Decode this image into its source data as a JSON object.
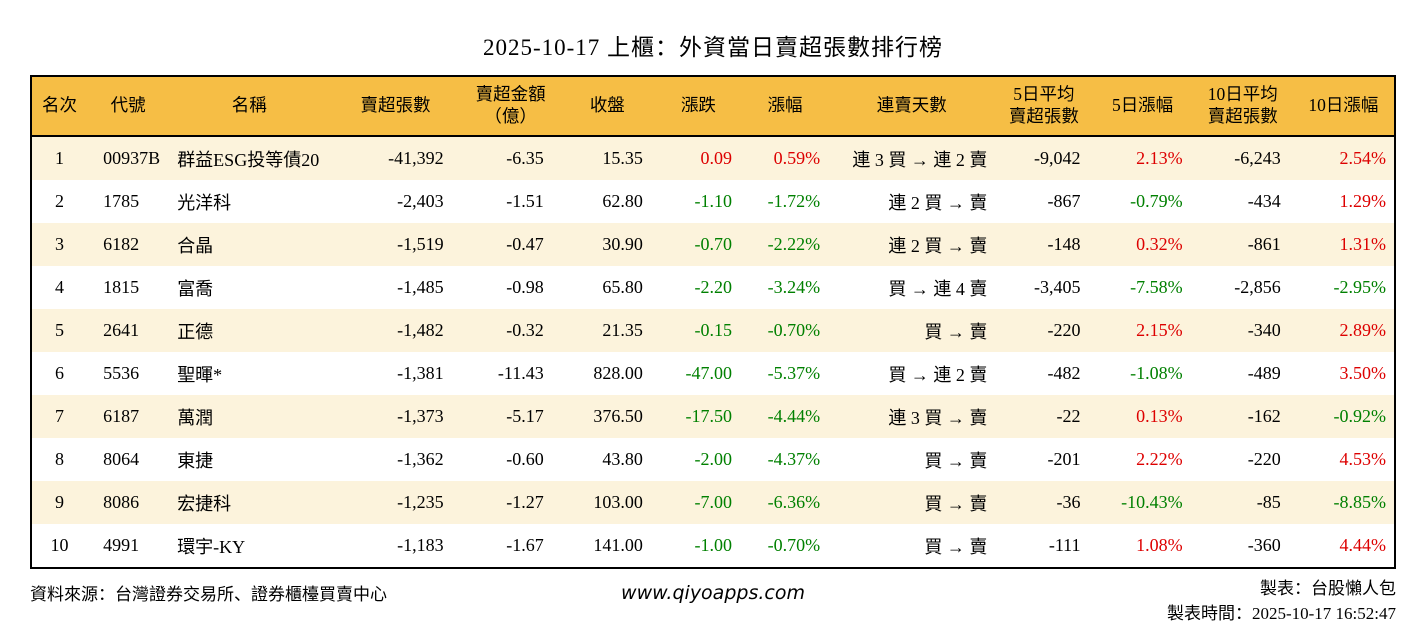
{
  "title": "2025-10-17 上櫃：外資當日賣超張數排行榜",
  "colors": {
    "up_red": "#dd0000",
    "down_green": "#008000",
    "header_bg": "#f6be45",
    "row_alt_bg": "#fcf3dc",
    "border": "#000000"
  },
  "table": {
    "headers": [
      "名次",
      "代號",
      "名稱",
      "賣超張數",
      "賣超金額\n（億）",
      "收盤",
      "漲跌",
      "漲幅",
      "連賣天數",
      "5日平均\n賣超張數",
      "5日漲幅",
      "10日平均\n賣超張數",
      "10日漲幅"
    ],
    "rows": [
      {
        "rank": "1",
        "code": "00937B",
        "name": "群益ESG投等債20",
        "sell_volume": "-41,392",
        "sell_amount": "-6.35",
        "close": "15.35",
        "change": "0.09",
        "change_color": "red",
        "change_pct": "0.59%",
        "change_pct_color": "red",
        "streak": "連 3 買 → 連 2 賣",
        "avg5": "-9,042",
        "avg5_color": "black",
        "pct5": "2.13%",
        "pct5_color": "red",
        "avg10": "-6,243",
        "avg10_color": "black",
        "pct10": "2.54%",
        "pct10_color": "red"
      },
      {
        "rank": "2",
        "code": "1785",
        "name": "光洋科",
        "sell_volume": "-2,403",
        "sell_amount": "-1.51",
        "close": "62.80",
        "change": "-1.10",
        "change_color": "green",
        "change_pct": "-1.72%",
        "change_pct_color": "green",
        "streak": "連 2 買 → 賣",
        "avg5": "-867",
        "avg5_color": "black",
        "pct5": "-0.79%",
        "pct5_color": "green",
        "avg10": "-434",
        "avg10_color": "black",
        "pct10": "1.29%",
        "pct10_color": "red"
      },
      {
        "rank": "3",
        "code": "6182",
        "name": "合晶",
        "sell_volume": "-1,519",
        "sell_amount": "-0.47",
        "close": "30.90",
        "change": "-0.70",
        "change_color": "green",
        "change_pct": "-2.22%",
        "change_pct_color": "green",
        "streak": "連 2 買 → 賣",
        "avg5": "-148",
        "avg5_color": "black",
        "pct5": "0.32%",
        "pct5_color": "red",
        "avg10": "-861",
        "avg10_color": "black",
        "pct10": "1.31%",
        "pct10_color": "red"
      },
      {
        "rank": "4",
        "code": "1815",
        "name": "富喬",
        "sell_volume": "-1,485",
        "sell_amount": "-0.98",
        "close": "65.80",
        "change": "-2.20",
        "change_color": "green",
        "change_pct": "-3.24%",
        "change_pct_color": "green",
        "streak": "買 → 連 4 賣",
        "avg5": "-3,405",
        "avg5_color": "black",
        "pct5": "-7.58%",
        "pct5_color": "green",
        "avg10": "-2,856",
        "avg10_color": "black",
        "pct10": "-2.95%",
        "pct10_color": "green"
      },
      {
        "rank": "5",
        "code": "2641",
        "name": "正德",
        "sell_volume": "-1,482",
        "sell_amount": "-0.32",
        "close": "21.35",
        "change": "-0.15",
        "change_color": "green",
        "change_pct": "-0.70%",
        "change_pct_color": "green",
        "streak": "買 → 賣",
        "avg5": "-220",
        "avg5_color": "black",
        "pct5": "2.15%",
        "pct5_color": "red",
        "avg10": "-340",
        "avg10_color": "black",
        "pct10": "2.89%",
        "pct10_color": "red"
      },
      {
        "rank": "6",
        "code": "5536",
        "name": "聖暉*",
        "sell_volume": "-1,381",
        "sell_amount": "-11.43",
        "close": "828.00",
        "change": "-47.00",
        "change_color": "green",
        "change_pct": "-5.37%",
        "change_pct_color": "green",
        "streak": "買 → 連 2 賣",
        "avg5": "-482",
        "avg5_color": "black",
        "pct5": "-1.08%",
        "pct5_color": "green",
        "avg10": "-489",
        "avg10_color": "black",
        "pct10": "3.50%",
        "pct10_color": "red"
      },
      {
        "rank": "7",
        "code": "6187",
        "name": "萬潤",
        "sell_volume": "-1,373",
        "sell_amount": "-5.17",
        "close": "376.50",
        "change": "-17.50",
        "change_color": "green",
        "change_pct": "-4.44%",
        "change_pct_color": "green",
        "streak": "連 3 買 → 賣",
        "avg5": "-22",
        "avg5_color": "black",
        "pct5": "0.13%",
        "pct5_color": "red",
        "avg10": "-162",
        "avg10_color": "black",
        "pct10": "-0.92%",
        "pct10_color": "green"
      },
      {
        "rank": "8",
        "code": "8064",
        "name": "東捷",
        "sell_volume": "-1,362",
        "sell_amount": "-0.60",
        "close": "43.80",
        "change": "-2.00",
        "change_color": "green",
        "change_pct": "-4.37%",
        "change_pct_color": "green",
        "streak": "買 → 賣",
        "avg5": "-201",
        "avg5_color": "black",
        "pct5": "2.22%",
        "pct5_color": "red",
        "avg10": "-220",
        "avg10_color": "black",
        "pct10": "4.53%",
        "pct10_color": "red"
      },
      {
        "rank": "9",
        "code": "8086",
        "name": "宏捷科",
        "sell_volume": "-1,235",
        "sell_amount": "-1.27",
        "close": "103.00",
        "change": "-7.00",
        "change_color": "green",
        "change_pct": "-6.36%",
        "change_pct_color": "green",
        "streak": "買 → 賣",
        "avg5": "-36",
        "avg5_color": "black",
        "pct5": "-10.43%",
        "pct5_color": "green",
        "avg10": "-85",
        "avg10_color": "black",
        "pct10": "-8.85%",
        "pct10_color": "green"
      },
      {
        "rank": "10",
        "code": "4991",
        "name": "環宇-KY",
        "sell_volume": "-1,183",
        "sell_amount": "-1.67",
        "close": "141.00",
        "change": "-1.00",
        "change_color": "green",
        "change_pct": "-0.70%",
        "change_pct_color": "green",
        "streak": "買 → 賣",
        "avg5": "-111",
        "avg5_color": "black",
        "pct5": "1.08%",
        "pct5_color": "red",
        "avg10": "-360",
        "avg10_color": "black",
        "pct10": "4.44%",
        "pct10_color": "red"
      }
    ]
  },
  "footer": {
    "source": "資料來源：台灣證券交易所、證券櫃檯買賣中心",
    "site": "www.qiyoapps.com",
    "author": "製表：台股懶人包",
    "timestamp": "製表時間：2025-10-17 16:52:47"
  }
}
